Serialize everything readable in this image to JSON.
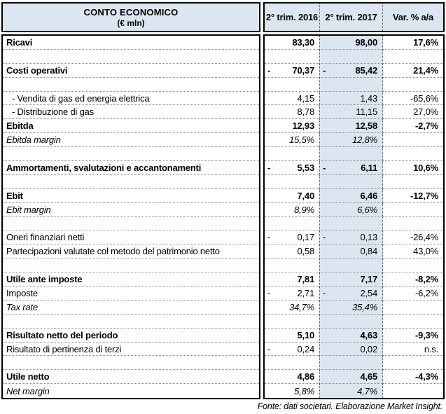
{
  "header": {
    "title": "CONTO ECONOMICO",
    "subtitle": "(€ mln)",
    "columns": [
      "2° trim. 2016",
      "2° trim. 2017",
      "Var. % a/a"
    ]
  },
  "rows": [
    {
      "label": "Ricavi",
      "type": "bold",
      "s16": "",
      "v16": "83,30",
      "s17": "",
      "v17": "98,00",
      "var": "17,6%"
    },
    {
      "label": "",
      "type": "empty",
      "s16": "",
      "v16": "",
      "s17": "",
      "v17": "",
      "var": ""
    },
    {
      "label": "Costi operativi",
      "type": "bold",
      "s16": "-",
      "v16": "70,37",
      "s17": "-",
      "v17": "85,42",
      "var": "21,4%"
    },
    {
      "label": "",
      "type": "empty",
      "s16": "",
      "v16": "",
      "s17": "",
      "v17": "",
      "var": ""
    },
    {
      "label": "- Vendita di gas ed energia elettrica",
      "type": "sub",
      "s16": "",
      "v16": "4,15",
      "s17": "",
      "v17": "1,43",
      "var": "-65,6%"
    },
    {
      "label": "- Distribuzione di gas",
      "type": "sub",
      "s16": "",
      "v16": "8,78",
      "s17": "",
      "v17": "11,15",
      "var": "27,0%"
    },
    {
      "label": "Ebitda",
      "type": "bold",
      "s16": "",
      "v16": "12,93",
      "s17": "",
      "v17": "12,58",
      "var": "-2,7%"
    },
    {
      "label": "Ebitda margin",
      "type": "italic",
      "s16": "",
      "v16": "15,5%",
      "s17": "",
      "v17": "12,8%",
      "var": ""
    },
    {
      "label": "",
      "type": "empty",
      "s16": "",
      "v16": "",
      "s17": "",
      "v17": "",
      "var": ""
    },
    {
      "label": "Ammortamenti, svalutazioni e accantonamenti",
      "type": "bold",
      "s16": "-",
      "v16": "5,53",
      "s17": "-",
      "v17": "6,11",
      "var": "10,6%"
    },
    {
      "label": "",
      "type": "empty",
      "s16": "",
      "v16": "",
      "s17": "",
      "v17": "",
      "var": ""
    },
    {
      "label": "Ebit",
      "type": "bold",
      "s16": "",
      "v16": "7,40",
      "s17": "",
      "v17": "6,46",
      "var": "-12,7%"
    },
    {
      "label": "Ebit margin",
      "type": "italic",
      "s16": "",
      "v16": "8,9%",
      "s17": "",
      "v17": "6,6%",
      "var": ""
    },
    {
      "label": "",
      "type": "empty",
      "s16": "",
      "v16": "",
      "s17": "",
      "v17": "",
      "var": ""
    },
    {
      "label": "Oneri finanziari netti",
      "type": "normal",
      "s16": "-",
      "v16": "0,17",
      "s17": "-",
      "v17": "0,13",
      "var": "-26,4%"
    },
    {
      "label": "Partecipazioni valutate col metodo del patrimonio netto",
      "type": "normal",
      "s16": "",
      "v16": "0,58",
      "s17": "",
      "v17": "0,84",
      "var": "43,0%"
    },
    {
      "label": "",
      "type": "empty",
      "s16": "",
      "v16": "",
      "s17": "",
      "v17": "",
      "var": ""
    },
    {
      "label": "Utile ante imposte",
      "type": "bold",
      "s16": "",
      "v16": "7,81",
      "s17": "",
      "v17": "7,17",
      "var": "-8,2%"
    },
    {
      "label": "Imposte",
      "type": "normal",
      "s16": "-",
      "v16": "2,71",
      "s17": "-",
      "v17": "2,54",
      "var": "-6,2%"
    },
    {
      "label": "Tax rate",
      "type": "italic",
      "s16": "",
      "v16": "34,7%",
      "s17": "",
      "v17": "35,4%",
      "var": ""
    },
    {
      "label": "",
      "type": "empty",
      "s16": "",
      "v16": "",
      "s17": "",
      "v17": "",
      "var": ""
    },
    {
      "label": "Risultato netto del periodo",
      "type": "bold",
      "s16": "",
      "v16": "5,10",
      "s17": "",
      "v17": "4,63",
      "var": "-9,3%"
    },
    {
      "label": "Risultato di pertinenza di terzi",
      "type": "normal",
      "s16": "-",
      "v16": "0,24",
      "s17": "",
      "v17": "0,02",
      "var": "n.s."
    },
    {
      "label": "",
      "type": "empty",
      "s16": "",
      "v16": "",
      "s17": "",
      "v17": "",
      "var": ""
    },
    {
      "label": "Utile netto",
      "type": "bold",
      "s16": "",
      "v16": "4,86",
      "s17": "",
      "v17": "4,65",
      "var": "-4,3%"
    },
    {
      "label": "Net margin",
      "type": "italic",
      "s16": "",
      "v16": "5,8%",
      "s17": "",
      "v17": "4,7%",
      "var": ""
    }
  ],
  "footer": {
    "source": "Fonte: dati societari. Elaborazione Market Insight."
  },
  "colors": {
    "header_bg": "#dce6f1",
    "highlight_column_bg": "#dce6f1",
    "border": "#000000",
    "dotted_grid": "#8a8a8a"
  }
}
